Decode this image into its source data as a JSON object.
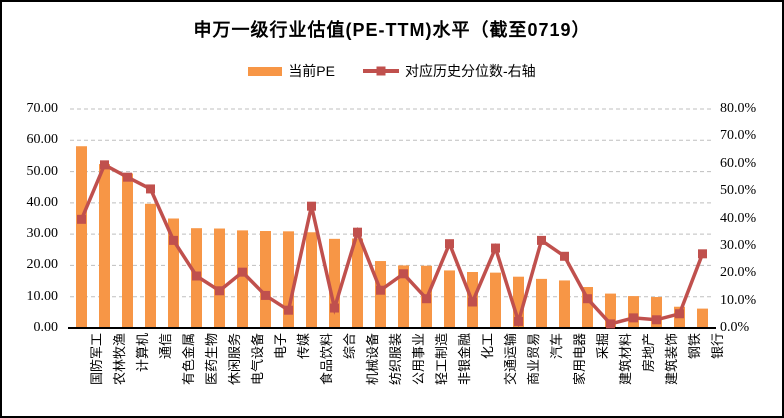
{
  "title": "申万一级行业估值(PE-TTM)水平（截至0719）",
  "legend": {
    "series1": "当前PE",
    "series2": "对应历史分位数-右轴"
  },
  "chart_data": {
    "type": "bar",
    "subtype": "bar-line-combo",
    "title": "申万一级行业估值(PE-TTM)水平（截至0719）",
    "categories": [
      "国防军工",
      "农林牧渔",
      "计算机",
      "通信",
      "有色金属",
      "医药生物",
      "休闲服务",
      "电气设备",
      "电子",
      "传媒",
      "食品饮料",
      "综合",
      "机械设备",
      "纺织服装",
      "公用事业",
      "轻工制造",
      "非银金融",
      "化工",
      "交通运输",
      "商业贸易",
      "汽车",
      "家用电器",
      "采掘",
      "建筑材料",
      "房地产",
      "建筑装饰",
      "钢铁",
      "银行"
    ],
    "series": [
      {
        "name": "当前PE",
        "type": "bar",
        "axis": "left",
        "values": [
          58.1,
          52.4,
          49.4,
          39.7,
          35.0,
          31.9,
          31.8,
          31.2,
          31.0,
          30.9,
          30.6,
          28.5,
          28.6,
          21.4,
          20.0,
          19.9,
          18.4,
          17.9,
          17.7,
          16.4,
          15.7,
          15.2,
          13.1,
          11.0,
          10.2,
          9.9,
          6.8,
          6.2
        ]
      },
      {
        "name": "对应历史分位数-右轴",
        "type": "line",
        "axis": "right",
        "values_percent": [
          39.7,
          59.6,
          55.1,
          50.8,
          32.0,
          19.0,
          13.6,
          20.4,
          11.9,
          6.5,
          44.5,
          7.3,
          35.0,
          13.8,
          19.8,
          10.7,
          30.8,
          9.5,
          29.2,
          2.4,
          32.0,
          26.2,
          10.7,
          1.5,
          3.7,
          3.0,
          5.2,
          27.1
        ]
      }
    ],
    "left_axis": {
      "min": 0,
      "max": 70,
      "step": 10,
      "tick_format": "0.00"
    },
    "right_axis": {
      "min": 0,
      "max": 80,
      "step": 10,
      "tick_format": "0.0%"
    },
    "grid": "horizontal-dashed",
    "legend_position": "top",
    "colors": {
      "bar": "#F79646",
      "line": "#C0504D",
      "gridline": "#BFBFBF",
      "axis": "#000000"
    }
  }
}
